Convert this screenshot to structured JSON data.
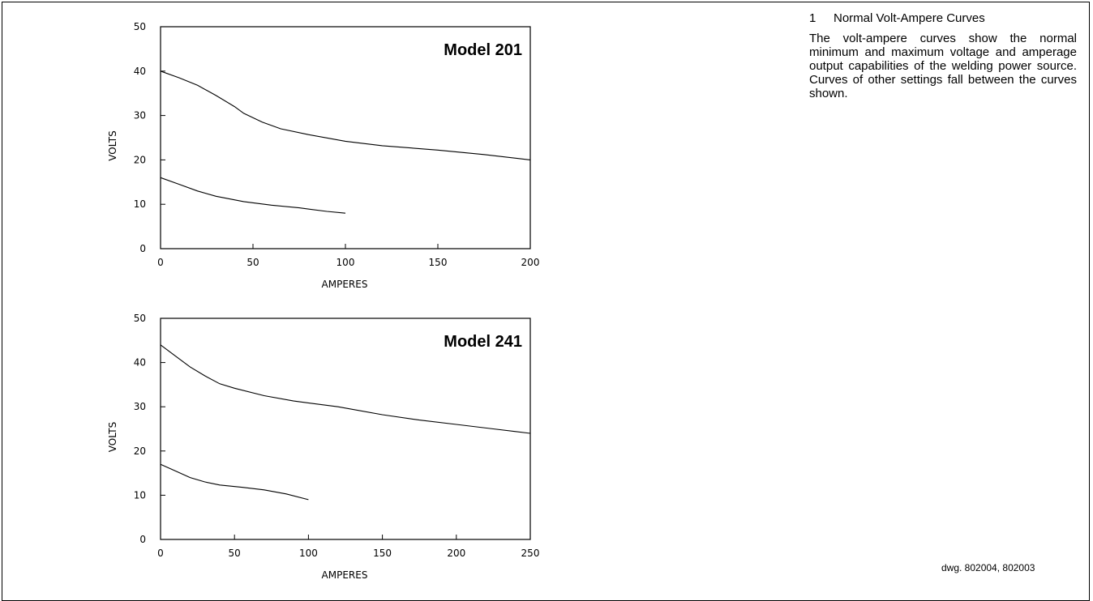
{
  "section": {
    "number": "1",
    "heading": "Normal Volt-Ampere Curves",
    "body": "The volt-ampere curves show the normal minimum and maximum voltage and amperage output capabilities of the welding power source. Curves of other settings fall between the curves shown."
  },
  "drawing_ref": "dwg. 802004, 802003",
  "chart_data": [
    {
      "type": "line",
      "title": "Model 201",
      "xlabel": "AMPERES",
      "ylabel": "VOLTS",
      "xlim": [
        0,
        200
      ],
      "ylim": [
        0,
        50
      ],
      "xticks": [
        0,
        50,
        100,
        150,
        200
      ],
      "yticks": [
        0,
        10,
        20,
        30,
        40,
        50
      ],
      "grid": false,
      "series": [
        {
          "points": [
            [
              0,
              40
            ],
            [
              10,
              38.5
            ],
            [
              20,
              36.8
            ],
            [
              30,
              34.5
            ],
            [
              40,
              32
            ],
            [
              45,
              30.5
            ],
            [
              55,
              28.5
            ],
            [
              65,
              27
            ],
            [
              80,
              25.7
            ],
            [
              100,
              24.2
            ],
            [
              120,
              23.2
            ],
            [
              150,
              22.2
            ],
            [
              175,
              21.2
            ],
            [
              200,
              20
            ]
          ]
        },
        {
          "points": [
            [
              0,
              16
            ],
            [
              10,
              14.5
            ],
            [
              20,
              13
            ],
            [
              30,
              11.8
            ],
            [
              45,
              10.6
            ],
            [
              60,
              9.8
            ],
            [
              75,
              9.2
            ],
            [
              90,
              8.4
            ],
            [
              100,
              8
            ]
          ]
        }
      ]
    },
    {
      "type": "line",
      "title": "Model 241",
      "xlabel": "AMPERES",
      "ylabel": "VOLTS",
      "xlim": [
        0,
        250
      ],
      "ylim": [
        0,
        50
      ],
      "xticks": [
        0,
        50,
        100,
        150,
        200,
        250
      ],
      "yticks": [
        0,
        10,
        20,
        30,
        40,
        50
      ],
      "grid": false,
      "series": [
        {
          "points": [
            [
              0,
              44
            ],
            [
              10,
              41.5
            ],
            [
              20,
              39
            ],
            [
              30,
              37
            ],
            [
              40,
              35.2
            ],
            [
              50,
              34.2
            ],
            [
              70,
              32.5
            ],
            [
              90,
              31.3
            ],
            [
              120,
              30
            ],
            [
              150,
              28.2
            ],
            [
              175,
              27
            ],
            [
              200,
              26
            ],
            [
              225,
              25
            ],
            [
              250,
              24
            ]
          ]
        },
        {
          "points": [
            [
              0,
              17
            ],
            [
              10,
              15.5
            ],
            [
              20,
              14
            ],
            [
              30,
              13
            ],
            [
              40,
              12.3
            ],
            [
              55,
              11.8
            ],
            [
              70,
              11.2
            ],
            [
              85,
              10.3
            ],
            [
              100,
              9
            ]
          ]
        }
      ]
    }
  ]
}
